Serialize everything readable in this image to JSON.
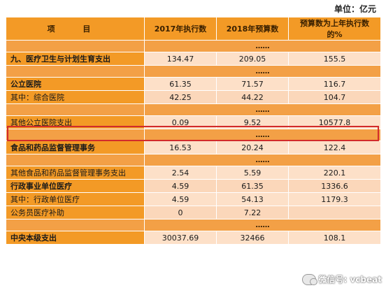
{
  "unit_label": "单位：亿元",
  "header": {
    "item": "项 目",
    "col1": "2017年执行数",
    "col2": "2018年预算数",
    "col3": "预算数为上年执行数的%"
  },
  "ellipsis": "……",
  "rows": [
    {
      "name": "九、医疗卫生与计划生育支出",
      "v1": "134.47",
      "v2": "209.05",
      "v3": "155.5"
    },
    {
      "name": "公立医院",
      "v1": "61.35",
      "v2": "71.57",
      "v3": "116.7"
    },
    {
      "name": "其中：综合医院",
      "v1": "42.25",
      "v2": "44.22",
      "v3": "104.7"
    },
    {
      "name": "其他公立医院支出",
      "v1": "0.09",
      "v2": "9.52",
      "v3": "10577.8"
    },
    {
      "name": "食品和药品监督管理事务",
      "v1": "16.53",
      "v2": "20.24",
      "v3": "122.4"
    },
    {
      "name": "其他食品和药品监督管理事务支出",
      "v1": "2.54",
      "v2": "5.59",
      "v3": "220.1"
    },
    {
      "name": "行政事业单位医疗",
      "v1": "4.59",
      "v2": "61.35",
      "v3": "1336.6"
    },
    {
      "name": "其中：行政单位医疗",
      "v1": "4.59",
      "v2": "54.13",
      "v3": "1179.3"
    },
    {
      "name": "公务员医疗补助",
      "v1": "0",
      "v2": "7.22",
      "v3": ""
    },
    {
      "name": "中央本级支出",
      "v1": "30037.69",
      "v2": "32466",
      "v3": "108.1"
    }
  ],
  "watermark": {
    "text": "微信号: vcbeat",
    "icon": "wechat-icon"
  },
  "colors": {
    "header_orange": "#f39a26",
    "ellipsis_orange": "#f3a046",
    "peach": "#fde0c8",
    "highlight_red": "#d22b2b"
  }
}
